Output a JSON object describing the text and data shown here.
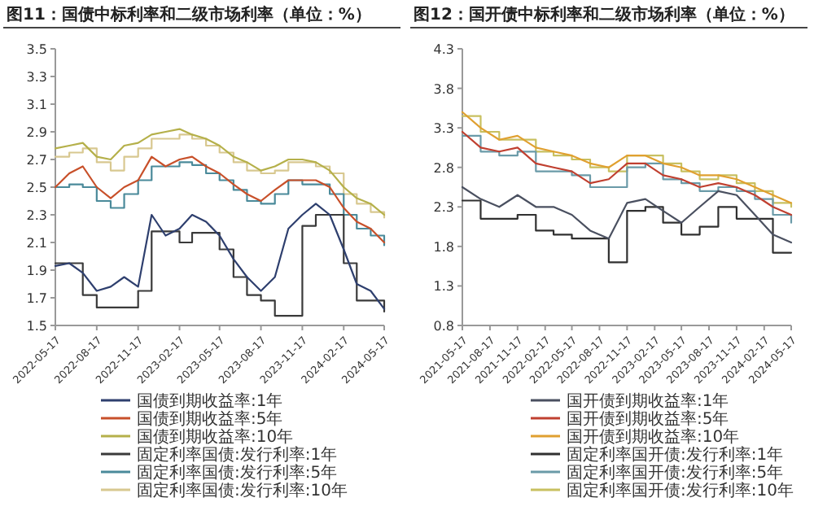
{
  "chart_data": [
    {
      "type": "line",
      "title": "图11：国债中标利率和二级市场利率（单位：%）",
      "x": [
        "2022-05-17",
        "2022-06-17",
        "2022-07-17",
        "2022-08-17",
        "2022-09-17",
        "2022-10-17",
        "2022-11-17",
        "2022-12-17",
        "2023-01-17",
        "2023-02-17",
        "2023-03-17",
        "2023-04-17",
        "2023-05-17",
        "2023-06-17",
        "2023-07-17",
        "2023-08-17",
        "2023-09-17",
        "2023-10-17",
        "2023-11-17",
        "2023-12-17",
        "2024-01-17",
        "2024-02-17",
        "2024-03-17",
        "2024-04-17",
        "2024-05-17"
      ],
      "xlim": [
        "2022-05-17",
        "2024-05-17"
      ],
      "xticks": [
        "2022-05-17",
        "2022-08-17",
        "2022-11-17",
        "2023-02-17",
        "2023-05-17",
        "2023-08-17",
        "2023-11-17",
        "2024-02-17",
        "2024-05-17"
      ],
      "ylim": [
        1.5,
        3.5
      ],
      "yticks": [
        1.5,
        1.7,
        1.9,
        2.1,
        2.3,
        2.5,
        2.7,
        2.9,
        3.1,
        3.3,
        3.5
      ],
      "legend": "bottom",
      "grid": false,
      "series": [
        {
          "name": "国债到期收益率:1年",
          "color": "#2e3f6e",
          "values": [
            1.93,
            1.95,
            1.88,
            1.75,
            1.78,
            1.85,
            1.78,
            2.3,
            2.15,
            2.2,
            2.3,
            2.25,
            2.15,
            1.98,
            1.85,
            1.75,
            1.85,
            2.2,
            2.3,
            2.38,
            2.3,
            2.05,
            1.8,
            1.75,
            1.62
          ]
        },
        {
          "name": "国债到期收益率:5年",
          "color": "#c8502a",
          "values": [
            2.5,
            2.6,
            2.65,
            2.5,
            2.42,
            2.5,
            2.55,
            2.72,
            2.65,
            2.7,
            2.72,
            2.65,
            2.6,
            2.52,
            2.45,
            2.4,
            2.48,
            2.55,
            2.55,
            2.55,
            2.5,
            2.35,
            2.25,
            2.2,
            2.1
          ]
        },
        {
          "name": "国债到期收益率:10年",
          "color": "#b5b04a",
          "values": [
            2.78,
            2.8,
            2.82,
            2.72,
            2.7,
            2.8,
            2.82,
            2.88,
            2.9,
            2.92,
            2.88,
            2.85,
            2.8,
            2.72,
            2.68,
            2.62,
            2.65,
            2.7,
            2.7,
            2.68,
            2.62,
            2.5,
            2.42,
            2.38,
            2.3
          ]
        },
        {
          "name": "固定利率国债:发行利率:1年",
          "color": "#3a3a3a",
          "type": "step",
          "values": [
            1.95,
            1.95,
            1.72,
            1.63,
            1.63,
            1.63,
            1.75,
            2.18,
            2.18,
            2.1,
            2.17,
            2.17,
            2.05,
            1.85,
            1.72,
            1.68,
            1.57,
            1.57,
            2.22,
            2.3,
            2.3,
            1.95,
            1.68,
            1.68,
            1.6
          ]
        },
        {
          "name": "固定利率国债:发行利率:5年",
          "color": "#4a8a9a",
          "type": "step",
          "values": [
            2.5,
            2.52,
            2.5,
            2.4,
            2.35,
            2.45,
            2.55,
            2.65,
            2.65,
            2.68,
            2.66,
            2.6,
            2.55,
            2.48,
            2.4,
            2.38,
            2.45,
            2.55,
            2.52,
            2.52,
            2.45,
            2.3,
            2.2,
            2.15,
            2.08
          ]
        },
        {
          "name": "固定利率国债:发行利率:10年",
          "color": "#d8c890",
          "type": "step",
          "values": [
            2.72,
            2.75,
            2.78,
            2.68,
            2.62,
            2.72,
            2.78,
            2.85,
            2.85,
            2.88,
            2.85,
            2.8,
            2.75,
            2.68,
            2.62,
            2.6,
            2.62,
            2.68,
            2.68,
            2.65,
            2.6,
            2.45,
            2.38,
            2.32,
            2.28
          ]
        }
      ]
    },
    {
      "type": "line",
      "title": "图12：国开债中标利率和二级市场利率（单位：%）",
      "x": [
        "2021-05-17",
        "2021-07-17",
        "2021-09-17",
        "2021-11-17",
        "2022-01-17",
        "2022-03-17",
        "2022-05-17",
        "2022-07-17",
        "2022-09-17",
        "2022-11-17",
        "2023-01-17",
        "2023-03-17",
        "2023-05-17",
        "2023-07-17",
        "2023-09-17",
        "2023-11-17",
        "2024-01-17",
        "2024-03-17",
        "2024-05-17"
      ],
      "xlim": [
        "2021-05-17",
        "2024-05-17"
      ],
      "xticks": [
        "2021-05-17",
        "2021-08-17",
        "2021-11-17",
        "2022-02-17",
        "2022-05-17",
        "2022-08-17",
        "2022-11-17",
        "2023-02-17",
        "2023-05-17",
        "2023-08-17",
        "2023-11-17",
        "2024-02-17",
        "2024-05-17"
      ],
      "ylim": [
        0.8,
        4.3
      ],
      "yticks": [
        0.8,
        1.3,
        1.8,
        2.3,
        2.8,
        3.3,
        3.8,
        4.3
      ],
      "legend": "bottom",
      "grid": false,
      "series": [
        {
          "name": "国开债到期收益率:1年",
          "color": "#4a5060",
          "values": [
            2.55,
            2.4,
            2.3,
            2.45,
            2.3,
            2.3,
            2.2,
            2.0,
            1.9,
            2.35,
            2.4,
            2.25,
            2.1,
            2.3,
            2.5,
            2.45,
            2.2,
            1.95,
            1.85
          ]
        },
        {
          "name": "国开债到期收益率:5年",
          "color": "#c04030",
          "values": [
            3.25,
            3.05,
            3.0,
            3.05,
            2.85,
            2.8,
            2.75,
            2.6,
            2.65,
            2.85,
            2.85,
            2.7,
            2.65,
            2.55,
            2.6,
            2.55,
            2.45,
            2.3,
            2.2
          ]
        },
        {
          "name": "国开债到期收益率:10年",
          "color": "#e0a030",
          "values": [
            3.5,
            3.3,
            3.15,
            3.2,
            3.05,
            3.0,
            2.95,
            2.85,
            2.8,
            2.95,
            2.95,
            2.85,
            2.8,
            2.7,
            2.7,
            2.65,
            2.55,
            2.45,
            2.35
          ]
        },
        {
          "name": "固定利率国开债:发行利率:1年",
          "color": "#303030",
          "type": "step",
          "values": [
            2.38,
            2.15,
            2.15,
            2.2,
            2.0,
            1.95,
            1.9,
            1.9,
            1.6,
            2.25,
            2.3,
            2.1,
            1.95,
            2.05,
            2.3,
            2.15,
            2.15,
            1.72,
            1.72
          ]
        },
        {
          "name": "固定利率国开债:发行利率:5年",
          "color": "#6a9aa8",
          "type": "step",
          "values": [
            3.2,
            3.0,
            2.95,
            3.0,
            2.75,
            2.75,
            2.7,
            2.55,
            2.55,
            2.8,
            2.85,
            2.65,
            2.6,
            2.5,
            2.55,
            2.5,
            2.4,
            2.2,
            2.1
          ]
        },
        {
          "name": "固定利率国开债:发行利率:10年",
          "color": "#c8c060",
          "type": "step",
          "values": [
            3.45,
            3.25,
            3.15,
            3.15,
            3.0,
            2.95,
            2.9,
            2.8,
            2.75,
            2.95,
            2.95,
            2.85,
            2.75,
            2.65,
            2.7,
            2.6,
            2.5,
            2.35,
            2.3
          ]
        }
      ]
    }
  ]
}
